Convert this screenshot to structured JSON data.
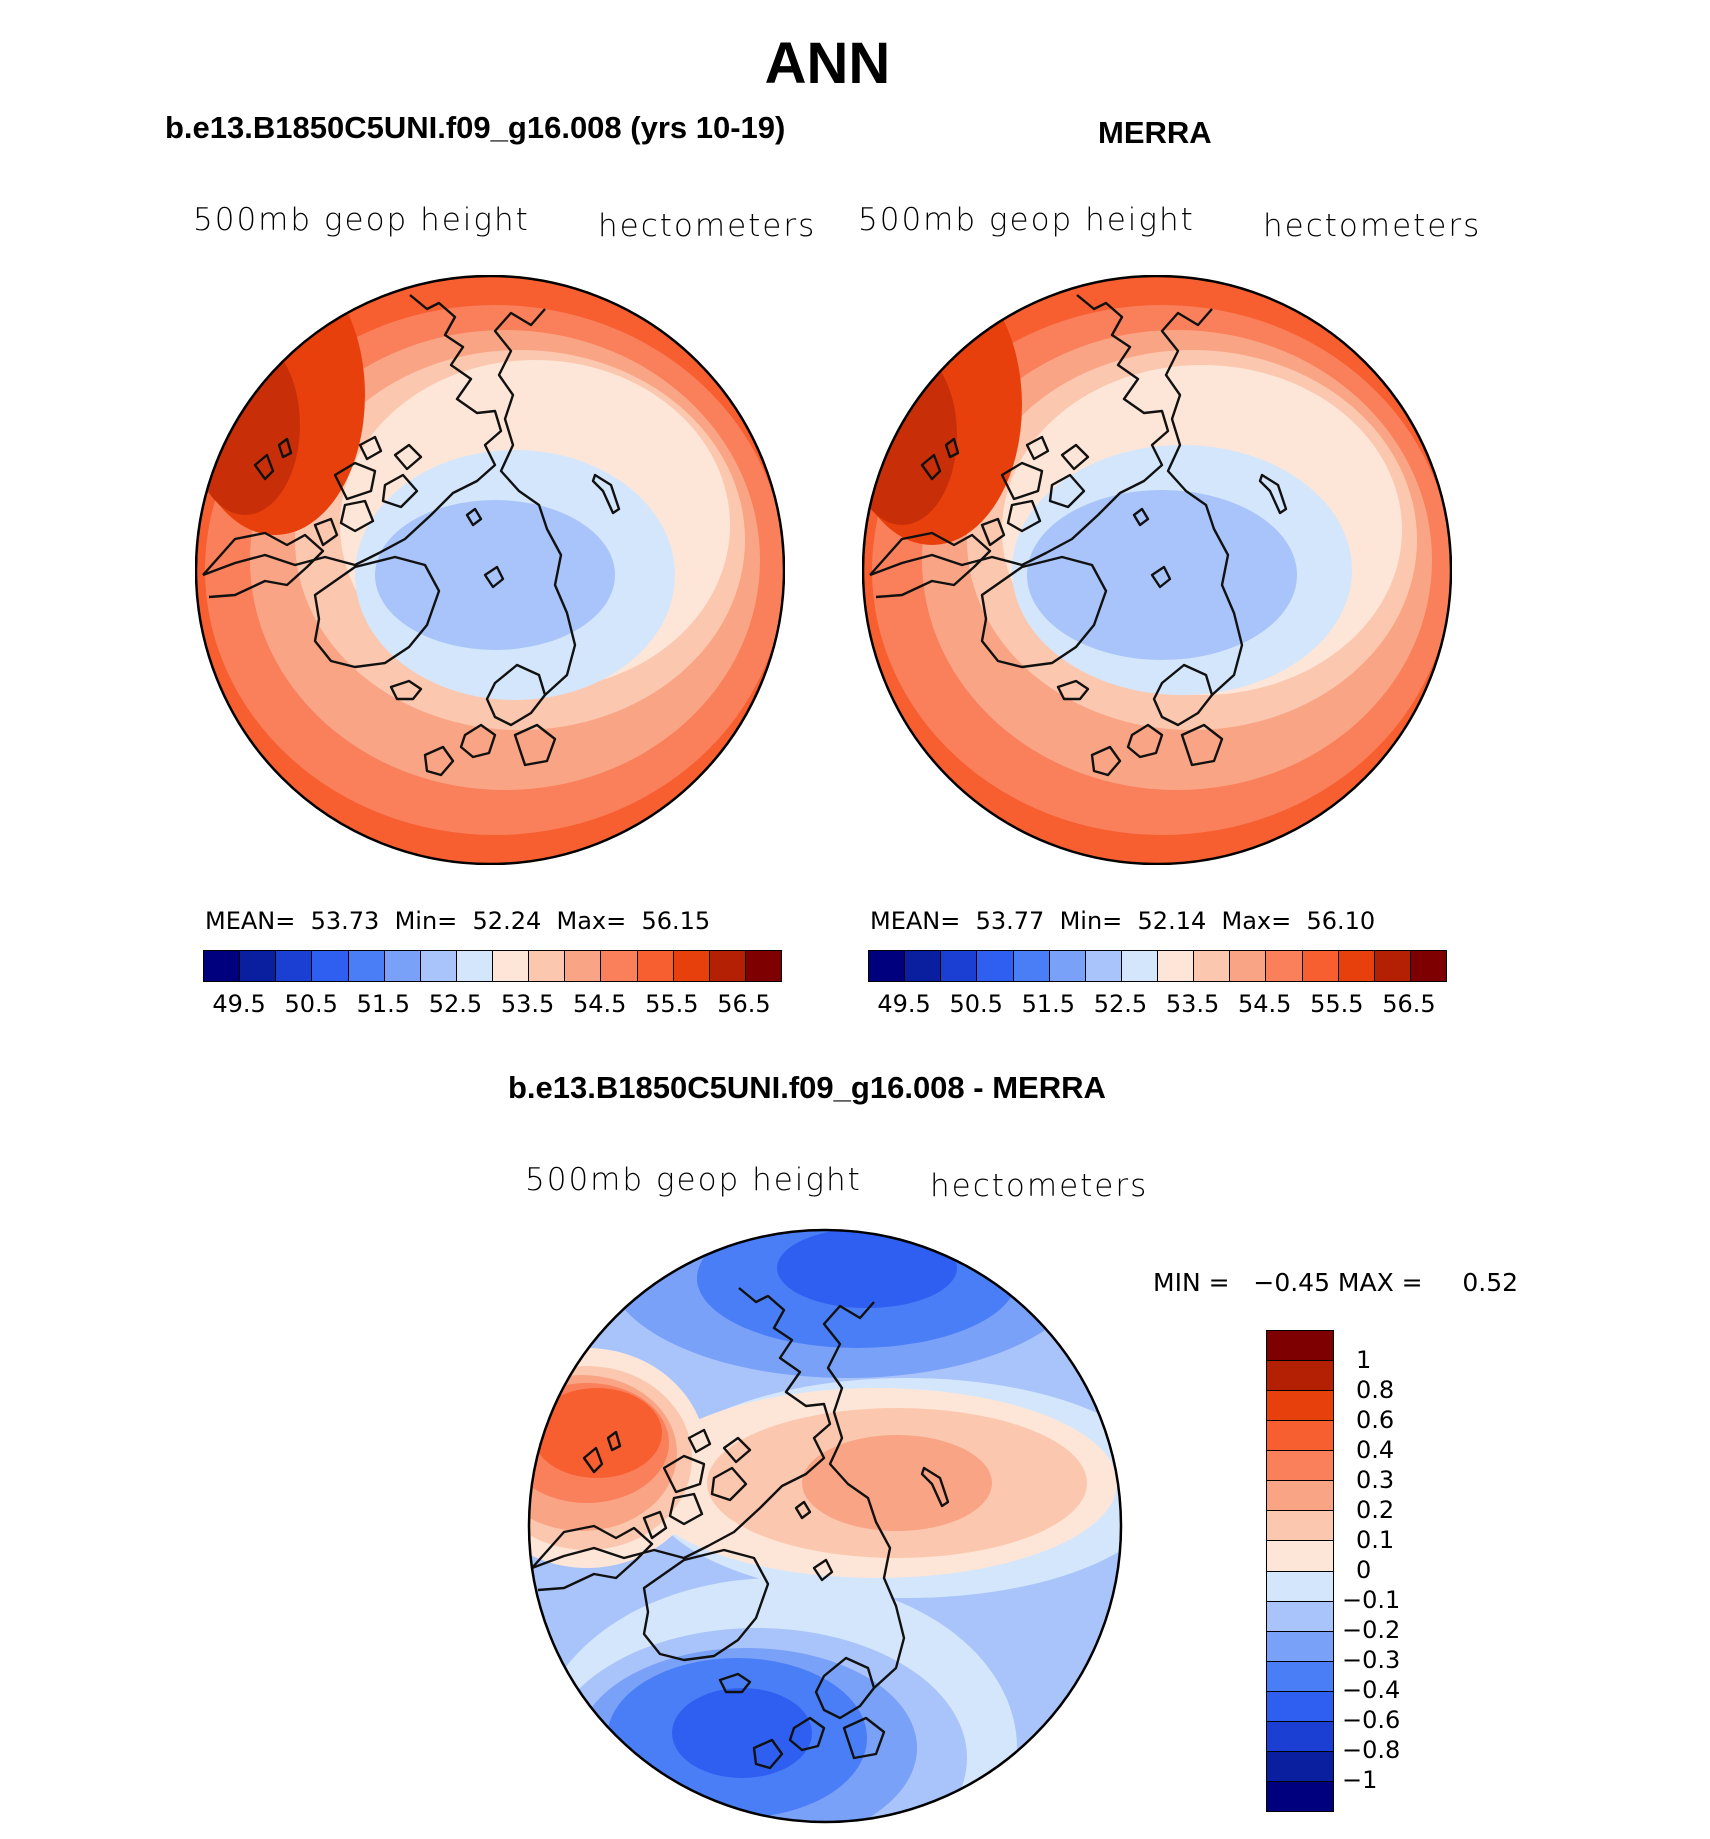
{
  "title": "ANN",
  "panels": [
    {
      "title": "b.e13.B1850C5UNI.f09_g16.008 (yrs 10-19)",
      "variable": "500mb geop height",
      "units": "hectometers",
      "stats": "MEAN=  53.73  Min=  52.24  Max=  56.15",
      "mean": 53.73,
      "min": 52.24,
      "max": 56.15
    },
    {
      "title": "MERRA",
      "variable": "500mb geop height",
      "units": "hectometers",
      "stats": "MEAN=  53.77  Min=  52.14  Max=  56.10",
      "mean": 53.77,
      "min": 52.14,
      "max": 56.1
    }
  ],
  "diff_panel": {
    "title": "b.e13.B1850C5UNI.f09_g16.008 - MERRA",
    "variable": "500mb geop height",
    "units": "hectometers",
    "minmax": "MIN =   −0.45 MAX =     0.52",
    "min": -0.45,
    "max": 0.52
  },
  "colorbar_main": {
    "labels": [
      "49.5",
      "50.5",
      "51.5",
      "52.5",
      "53.5",
      "54.5",
      "55.5",
      "56.5"
    ],
    "colors": [
      "#00007f",
      "#0a1fa0",
      "#1a3fd2",
      "#2f5ff0",
      "#4a7ef6",
      "#7aa1f8",
      "#a9c4fa",
      "#d4e6fb",
      "#fde6d8",
      "#fbc8af",
      "#f9a585",
      "#f9805a",
      "#f75e30",
      "#e8400d",
      "#b32004",
      "#7f0000"
    ]
  },
  "colorbar_diff": {
    "labels": [
      "1",
      "0.8",
      "0.6",
      "0.4",
      "0.3",
      "0.2",
      "0.1",
      "0",
      "−0.1",
      "−0.2",
      "−0.3",
      "−0.4",
      "−0.6",
      "−0.8",
      "−1"
    ],
    "colors": [
      "#00007f",
      "#0a1fa0",
      "#1a3fd2",
      "#2f5ff0",
      "#4a7ef6",
      "#7aa1f8",
      "#a9c4fa",
      "#d4e6fb",
      "#fde6d8",
      "#fbc8af",
      "#f9a585",
      "#f9805a",
      "#f75e30",
      "#e8400d",
      "#b32004",
      "#7f0000"
    ]
  }
}
